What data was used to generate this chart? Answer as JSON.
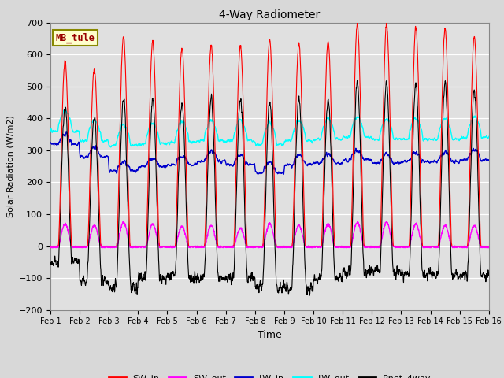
{
  "title": "4-Way Radiometer",
  "xlabel": "Time",
  "ylabel": "Solar Radiation (W/m2)",
  "ylim": [
    -200,
    700
  ],
  "yticks": [
    -200,
    -100,
    0,
    100,
    200,
    300,
    400,
    500,
    600,
    700
  ],
  "n_days": 15,
  "station_label": "MB_tule",
  "colors": {
    "SW_in": "#FF0000",
    "SW_out": "#FF00FF",
    "LW_in": "#0000CC",
    "LW_out": "#00FFFF",
    "Rnet_4way": "#000000"
  },
  "background_color": "#D8D8D8",
  "axes_background": "#E0E0E0",
  "grid_color": "#FFFFFF",
  "sw_in_peaks": [
    580,
    555,
    655,
    640,
    620,
    625,
    630,
    645,
    635,
    640,
    695,
    695,
    685,
    680,
    655
  ],
  "sw_out_peaks": [
    70,
    65,
    75,
    68,
    62,
    65,
    55,
    70,
    65,
    70,
    75,
    75,
    70,
    65,
    65
  ],
  "lw_in_base": [
    320,
    280,
    235,
    250,
    255,
    265,
    255,
    230,
    255,
    260,
    270,
    260,
    265,
    265,
    270
  ],
  "lw_out_base": [
    375,
    345,
    330,
    335,
    340,
    345,
    345,
    335,
    345,
    350,
    355,
    350,
    350,
    350,
    355
  ],
  "rnet_night": [
    -50,
    -110,
    -130,
    -100,
    -95,
    -100,
    -100,
    -130,
    -130,
    -100,
    -80,
    -80,
    -90,
    -90,
    -90
  ]
}
